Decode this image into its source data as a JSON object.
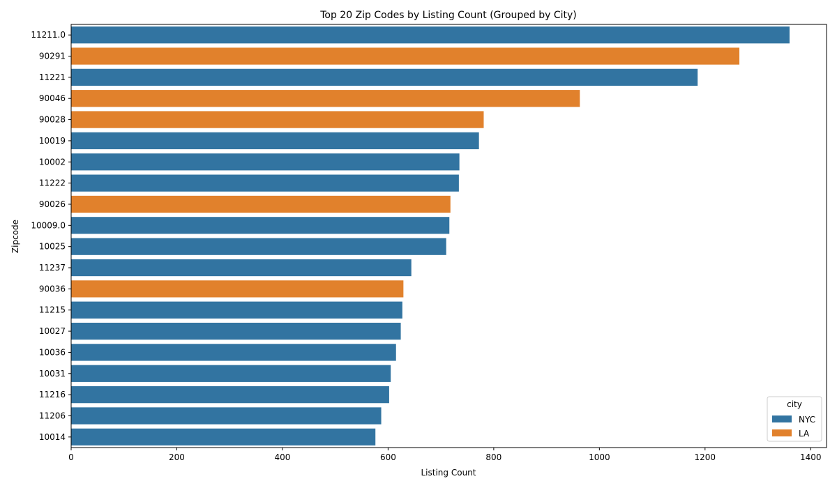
{
  "chart_data": {
    "type": "bar",
    "orientation": "horizontal",
    "title": "Top 20 Zip Codes by Listing Count (Grouped by City)",
    "xlabel": "Listing Count",
    "ylabel": "Zipcode",
    "xlim": [
      0,
      1430
    ],
    "xticks": [
      0,
      200,
      400,
      600,
      800,
      1000,
      1200,
      1400
    ],
    "grid": false,
    "categories": [
      "11211.0",
      "90291",
      "11221",
      "90046",
      "90028",
      "10019",
      "10002",
      "11222",
      "90026",
      "10009.0",
      "10025",
      "11237",
      "90036",
      "11215",
      "10027",
      "10036",
      "10031",
      "11216",
      "11206",
      "10014"
    ],
    "values": [
      1360,
      1265,
      1186,
      963,
      781,
      772,
      735,
      734,
      718,
      716,
      710,
      644,
      629,
      627,
      624,
      615,
      605,
      602,
      587,
      576
    ],
    "city": [
      "NYC",
      "LA",
      "NYC",
      "LA",
      "LA",
      "NYC",
      "NYC",
      "NYC",
      "LA",
      "NYC",
      "NYC",
      "NYC",
      "LA",
      "NYC",
      "NYC",
      "NYC",
      "NYC",
      "NYC",
      "NYC",
      "NYC"
    ],
    "legend": {
      "title": "city",
      "placement": "bottom-right",
      "entries": [
        {
          "name": "NYC",
          "color": "#3274a1"
        },
        {
          "name": "LA",
          "color": "#e1812c"
        }
      ]
    }
  }
}
